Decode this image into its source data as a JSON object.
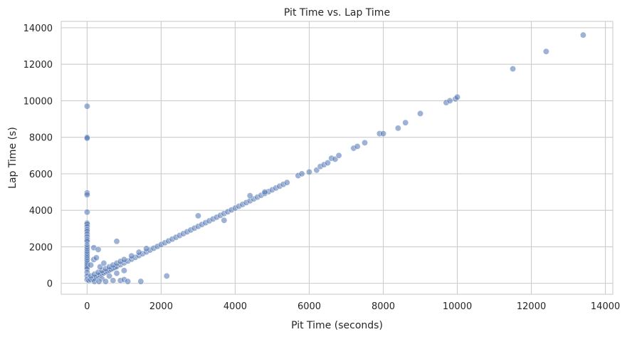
{
  "chart_data": {
    "type": "scatter",
    "title": "Pit Time vs. Lap Time",
    "xlabel": "Pit Time (seconds)",
    "ylabel": "Lap Time (s)",
    "xlim": [
      -700,
      14200
    ],
    "ylim": [
      -600,
      14350
    ],
    "xticks": [
      0,
      2000,
      4000,
      6000,
      8000,
      10000,
      12000,
      14000
    ],
    "yticks": [
      0,
      2000,
      4000,
      6000,
      8000,
      10000,
      12000,
      14000
    ],
    "grid": true,
    "color": "#4c72b0",
    "series": [
      {
        "name": "",
        "x": [
          0,
          0,
          0,
          0,
          0,
          0,
          0,
          0,
          0,
          0,
          0,
          0,
          0,
          0,
          0,
          0,
          0,
          0,
          0,
          0,
          0,
          0,
          0,
          0,
          0,
          0,
          0,
          0,
          0,
          0,
          0,
          0,
          50,
          100,
          150,
          200,
          250,
          300,
          350,
          400,
          450,
          500,
          550,
          600,
          650,
          700,
          750,
          800,
          900,
          1000,
          1100,
          1200,
          1300,
          1400,
          1500,
          1600,
          1700,
          1800,
          1900,
          2000,
          2100,
          2200,
          2300,
          2400,
          2500,
          2600,
          2700,
          2800,
          2900,
          3000,
          3100,
          3200,
          3300,
          3400,
          3500,
          3600,
          3700,
          3800,
          3900,
          4000,
          4100,
          4200,
          4300,
          4400,
          4500,
          4600,
          4700,
          4800,
          4900,
          5000,
          5100,
          5200,
          5300,
          5400,
          100,
          200,
          300,
          400,
          500,
          600,
          700,
          800,
          900,
          1000,
          1200,
          1400,
          1600,
          200,
          400,
          600,
          800,
          1000,
          100,
          180,
          250,
          350,
          450,
          3000,
          3700,
          4400,
          4800,
          800,
          180,
          300,
          320,
          500,
          700,
          900,
          1000,
          1100,
          1450,
          2150,
          5700,
          5800,
          6000,
          6200,
          6300,
          6400,
          6500,
          6600,
          6700,
          6800,
          7200,
          7300,
          7500,
          7900,
          8000,
          8400,
          8600,
          9000,
          9700,
          9800,
          9950,
          10000,
          11500,
          12400,
          13400
        ],
        "y": [
          9700,
          8000,
          7950,
          4950,
          4850,
          3900,
          3300,
          3250,
          3100,
          2950,
          2850,
          2700,
          2550,
          2400,
          2300,
          2100,
          2000,
          1900,
          1800,
          1700,
          1600,
          1500,
          1400,
          1300,
          1200,
          1100,
          1000,
          900,
          800,
          600,
          400,
          200,
          150,
          200,
          250,
          300,
          350,
          420,
          470,
          520,
          570,
          620,
          670,
          720,
          770,
          820,
          870,
          920,
          1020,
          1120,
          1220,
          1320,
          1420,
          1520,
          1620,
          1720,
          1820,
          1920,
          2020,
          2120,
          2220,
          2320,
          2420,
          2520,
          2620,
          2720,
          2820,
          2920,
          3020,
          3120,
          3220,
          3320,
          3420,
          3520,
          3620,
          3720,
          3820,
          3920,
          4020,
          4120,
          4220,
          4320,
          4420,
          4520,
          4620,
          4720,
          4820,
          4920,
          5020,
          5120,
          5220,
          5320,
          5420,
          5520,
          400,
          500,
          600,
          700,
          800,
          900,
          1000,
          1100,
          1200,
          1300,
          1500,
          1700,
          1900,
          100,
          250,
          400,
          550,
          700,
          1000,
          1300,
          1400,
          900,
          1100,
          3700,
          3450,
          4800,
          5000,
          2300,
          1950,
          1850,
          100,
          100,
          150,
          150,
          200,
          100,
          100,
          400,
          5900,
          6000,
          6100,
          6200,
          6400,
          6500,
          6600,
          6850,
          6800,
          7000,
          7400,
          7500,
          7700,
          8200,
          8200,
          8500,
          8800,
          9300,
          9900,
          10000,
          10100,
          10200,
          11750,
          12700,
          13600
        ]
      }
    ]
  }
}
